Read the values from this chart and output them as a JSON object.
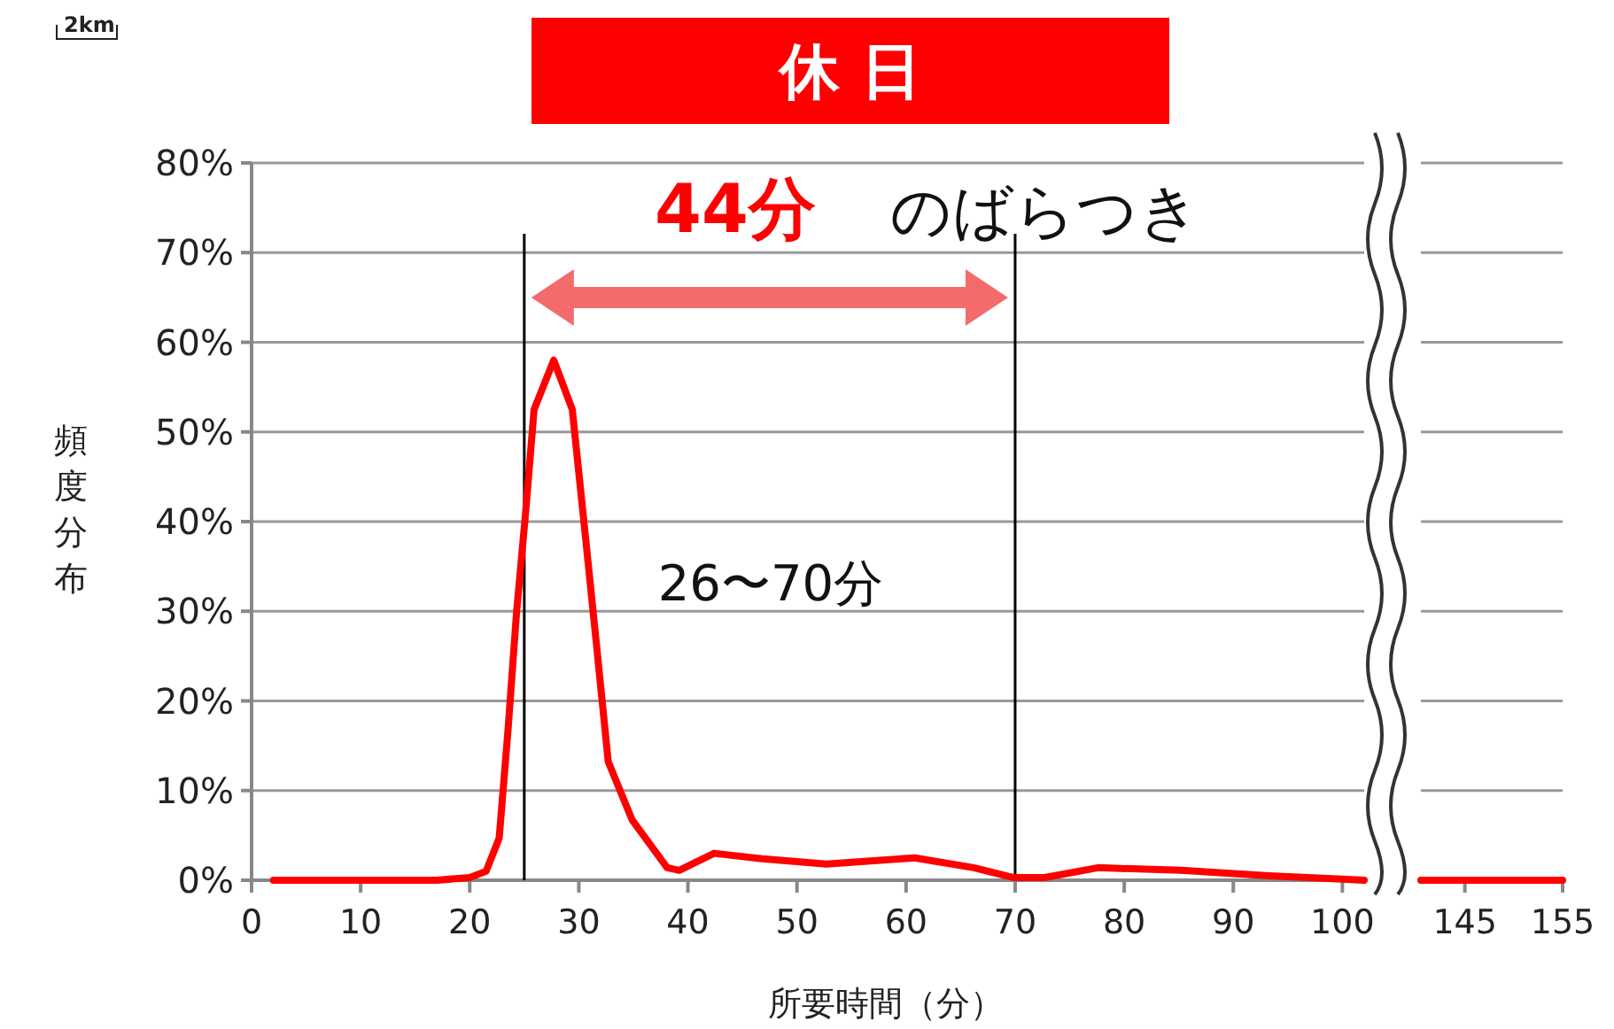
{
  "chart_data": [
    {
      "type": "line",
      "title": "休 日",
      "xlabel": "所要時間（分）",
      "ylabel": "頻度分布",
      "xlim": [
        0,
        102
      ],
      "xticks": [
        0,
        10,
        20,
        30,
        40,
        50,
        60,
        70,
        80,
        90,
        100
      ],
      "ylim": [
        0,
        80
      ],
      "yticks": [
        {
          "value": 0,
          "label": "0%"
        },
        {
          "value": 10,
          "label": "10%"
        },
        {
          "value": 20,
          "label": "20%"
        },
        {
          "value": 30,
          "label": "30%"
        },
        {
          "value": 40,
          "label": "40%"
        },
        {
          "value": 50,
          "label": "50%"
        },
        {
          "value": 60,
          "label": "60%"
        },
        {
          "value": 70,
          "label": "70%"
        },
        {
          "value": 80,
          "label": "80%"
        }
      ],
      "grid": "y",
      "series": [
        {
          "color": "#ff0000",
          "x": [
            2,
            10,
            17,
            20,
            21.5,
            22.7,
            23.5,
            24.3,
            25.1,
            25.9,
            27.7,
            29.4,
            30.5,
            31.6,
            32.7,
            34.9,
            38.1,
            39.2,
            42.4,
            46.8,
            52.7,
            60.8,
            66.2,
            69.8,
            72.7,
            77.6,
            85.2,
            93.3,
            102
          ],
          "values": [
            0,
            0,
            0,
            0.3,
            1,
            4.7,
            16.6,
            30,
            40.7,
            52.5,
            58,
            52.5,
            39.6,
            26.5,
            13.2,
            6.7,
            1.4,
            1.1,
            3,
            2.4,
            1.8,
            2.5,
            1.4,
            0.3,
            0.3,
            1.4,
            1.1,
            0.5,
            0
          ]
        }
      ],
      "ref_lines": [
        {
          "axis": "x",
          "value": 25,
          "color": "#000000"
        },
        {
          "axis": "x",
          "value": 70,
          "color": "#000000"
        }
      ],
      "annotations": [
        "44分",
        "のばらつき",
        "26〜70分",
        "2km"
      ]
    },
    {
      "type": "line",
      "xlim": [
        140.5,
        155
      ],
      "xticks": [
        145,
        155
      ],
      "ylim": [
        0,
        80
      ],
      "grid": "y",
      "tick_labels": "x",
      "series": [
        {
          "color": "#ff0000",
          "x": [
            140.5,
            155
          ],
          "values": [
            0,
            0
          ]
        }
      ]
    }
  ]
}
